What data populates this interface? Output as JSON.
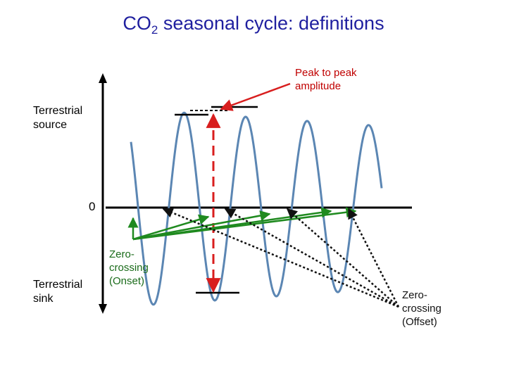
{
  "title": {
    "main": "CO",
    "sub": "2",
    "rest": " seasonal cycle:  definitions"
  },
  "labels": {
    "source_line1": "Terrestrial",
    "source_line2": "source",
    "zero": "0",
    "sink_line1": "Terrestrial",
    "sink_line2": "sink",
    "peak_line1": "Peak to peak",
    "peak_line2": "amplitude",
    "onset_line1": "Zero-",
    "onset_line2": "crossing",
    "onset_line3": "(Onset)",
    "offset_line1": "Zero-",
    "offset_line2": "crossing",
    "offset_line3": "(Offset)"
  },
  "colors": {
    "title": "#1f1f9f",
    "wave": "#5b86b3",
    "peak_arrow": "#d81e1e",
    "onset_arrows": "#1f8a1f",
    "offset_arrows": "#111111",
    "axis": "#000000"
  }
}
